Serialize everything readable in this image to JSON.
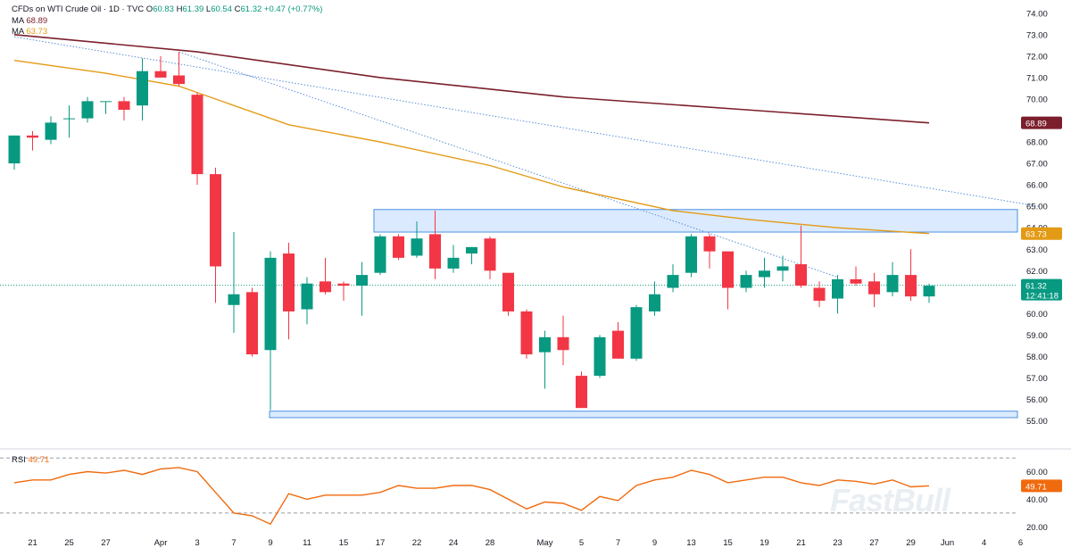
{
  "header": {
    "symbol": "CFDs on WTI Crude Oil · 1D · TVC",
    "o_label": "O",
    "o": "60.83",
    "h_label": "H",
    "h": "61.39",
    "l_label": "L",
    "l": "60.54",
    "c_label": "C",
    "c": "61.32",
    "change": "+0.47 (+0.77%)",
    "ma1_label": "MA",
    "ma1_value": "68.89",
    "ma2_label": "MA",
    "ma2_value": "63.73"
  },
  "rsi_legend": {
    "label": "RSI",
    "value": "49.71"
  },
  "watermark": "FastBull",
  "colors": {
    "up": "#089981",
    "down": "#f23645",
    "ma_long": "#7b1f2c",
    "ma_short": "#e39a14",
    "rsi": "#f06a0e",
    "zone_fill": "#dbeafe",
    "zone_border": "#4a90e2",
    "trendline": "#5b8ed6"
  },
  "chart_data": [
    {
      "type": "candlestick",
      "title": "CFDs on WTI Crude Oil · 1D · TVC",
      "ylim": [
        54.4,
        74.2
      ],
      "y_ticks": [
        55,
        56,
        57,
        58,
        59,
        60,
        61,
        62,
        63,
        64,
        65,
        66,
        67,
        68,
        69,
        70,
        71,
        72,
        73,
        74
      ],
      "y_tick_labels": [
        "55.00",
        "56.00",
        "57.00",
        "58.00",
        "59.00",
        "60.00",
        "61.00",
        "62.00",
        "63.00",
        "64.00",
        "65.00",
        "66.00",
        "67.00",
        "68.00",
        "69.00",
        "70.00",
        "71.00",
        "72.00",
        "73.00",
        "74.00"
      ],
      "x_tick_labels": [
        "21",
        "25",
        "27",
        "Apr",
        "3",
        "7",
        "9",
        "11",
        "15",
        "17",
        "22",
        "24",
        "28",
        "May",
        "5",
        "7",
        "9",
        "13",
        "15",
        "19",
        "21",
        "23",
        "27",
        "29",
        "Jun",
        "4",
        "6"
      ],
      "x_tick_index": [
        1,
        3,
        5,
        8,
        10,
        12,
        14,
        16,
        18,
        20,
        22,
        24,
        26,
        29,
        31,
        33,
        35,
        37,
        39,
        41,
        43,
        45,
        47,
        49,
        51,
        53,
        55
      ],
      "candles": [
        {
          "i": 0,
          "o": 67.0,
          "h": 68.3,
          "l": 66.7,
          "c": 68.3
        },
        {
          "i": 1,
          "o": 68.3,
          "h": 68.5,
          "l": 67.6,
          "c": 68.2
        },
        {
          "i": 2,
          "o": 68.1,
          "h": 69.2,
          "l": 67.9,
          "c": 68.9
        },
        {
          "i": 3,
          "o": 69.1,
          "h": 69.7,
          "l": 68.2,
          "c": 69.1
        },
        {
          "i": 4,
          "o": 69.1,
          "h": 70.1,
          "l": 68.9,
          "c": 69.9
        },
        {
          "i": 5,
          "o": 69.9,
          "h": 69.9,
          "l": 69.3,
          "c": 69.9
        },
        {
          "i": 6,
          "o": 69.9,
          "h": 70.1,
          "l": 69.0,
          "c": 69.5
        },
        {
          "i": 7,
          "o": 69.7,
          "h": 71.9,
          "l": 69.0,
          "c": 71.3
        },
        {
          "i": 8,
          "o": 71.3,
          "h": 72.0,
          "l": 71.0,
          "c": 71.0
        },
        {
          "i": 9,
          "o": 71.1,
          "h": 72.2,
          "l": 70.6,
          "c": 70.7
        },
        {
          "i": 10,
          "o": 70.2,
          "h": 70.3,
          "l": 66.0,
          "c": 66.5
        },
        {
          "i": 11,
          "o": 66.5,
          "h": 66.8,
          "l": 60.5,
          "c": 62.2
        },
        {
          "i": 12,
          "o": 60.4,
          "h": 63.8,
          "l": 59.1,
          "c": 60.9
        },
        {
          "i": 13,
          "o": 61.0,
          "h": 61.2,
          "l": 58.0,
          "c": 58.1
        },
        {
          "i": 14,
          "o": 58.3,
          "h": 62.9,
          "l": 55.5,
          "c": 62.6
        },
        {
          "i": 15,
          "o": 62.8,
          "h": 63.3,
          "l": 58.8,
          "c": 60.1
        },
        {
          "i": 16,
          "o": 60.2,
          "h": 61.7,
          "l": 59.5,
          "c": 61.4
        },
        {
          "i": 17,
          "o": 61.5,
          "h": 62.6,
          "l": 60.9,
          "c": 61.0
        },
        {
          "i": 18,
          "o": 61.4,
          "h": 61.5,
          "l": 60.6,
          "c": 61.3
        },
        {
          "i": 19,
          "o": 61.3,
          "h": 62.4,
          "l": 59.9,
          "c": 61.8
        },
        {
          "i": 20,
          "o": 61.9,
          "h": 63.7,
          "l": 61.8,
          "c": 63.6
        },
        {
          "i": 21,
          "o": 63.6,
          "h": 63.7,
          "l": 62.5,
          "c": 62.6
        },
        {
          "i": 22,
          "o": 62.7,
          "h": 64.3,
          "l": 62.6,
          "c": 63.5
        },
        {
          "i": 23,
          "o": 63.7,
          "h": 64.8,
          "l": 61.6,
          "c": 62.1
        },
        {
          "i": 24,
          "o": 62.1,
          "h": 63.2,
          "l": 61.9,
          "c": 62.6
        },
        {
          "i": 25,
          "o": 62.8,
          "h": 63.1,
          "l": 62.3,
          "c": 63.1
        },
        {
          "i": 26,
          "o": 63.5,
          "h": 63.6,
          "l": 61.6,
          "c": 62.0
        },
        {
          "i": 27,
          "o": 61.9,
          "h": 61.9,
          "l": 59.9,
          "c": 60.1
        },
        {
          "i": 28,
          "o": 60.1,
          "h": 60.2,
          "l": 57.9,
          "c": 58.1
        },
        {
          "i": 29,
          "o": 58.2,
          "h": 59.2,
          "l": 56.5,
          "c": 58.9
        },
        {
          "i": 30,
          "o": 58.9,
          "h": 59.9,
          "l": 57.6,
          "c": 58.3
        },
        {
          "i": 31,
          "o": 57.1,
          "h": 57.3,
          "l": 55.6,
          "c": 55.6
        },
        {
          "i": 32,
          "o": 57.1,
          "h": 59.0,
          "l": 57.0,
          "c": 58.9
        },
        {
          "i": 33,
          "o": 59.2,
          "h": 59.6,
          "l": 57.9,
          "c": 57.9
        },
        {
          "i": 34,
          "o": 57.9,
          "h": 60.4,
          "l": 57.8,
          "c": 60.3
        },
        {
          "i": 35,
          "o": 60.1,
          "h": 61.5,
          "l": 59.9,
          "c": 60.9
        },
        {
          "i": 36,
          "o": 61.2,
          "h": 62.3,
          "l": 61.0,
          "c": 61.8
        },
        {
          "i": 37,
          "o": 61.9,
          "h": 63.7,
          "l": 61.7,
          "c": 63.6
        },
        {
          "i": 38,
          "o": 63.6,
          "h": 63.7,
          "l": 62.1,
          "c": 62.9
        },
        {
          "i": 39,
          "o": 62.9,
          "h": 62.9,
          "l": 60.2,
          "c": 61.2
        },
        {
          "i": 40,
          "o": 61.2,
          "h": 62.0,
          "l": 61.0,
          "c": 61.8
        },
        {
          "i": 41,
          "o": 61.7,
          "h": 62.6,
          "l": 61.2,
          "c": 62.0
        },
        {
          "i": 42,
          "o": 62.0,
          "h": 62.7,
          "l": 61.5,
          "c": 62.2
        },
        {
          "i": 43,
          "o": 62.3,
          "h": 64.1,
          "l": 61.2,
          "c": 61.3
        },
        {
          "i": 44,
          "o": 61.2,
          "h": 61.5,
          "l": 60.3,
          "c": 60.6
        },
        {
          "i": 45,
          "o": 60.7,
          "h": 61.8,
          "l": 60.0,
          "c": 61.6
        },
        {
          "i": 46,
          "o": 61.6,
          "h": 62.2,
          "l": 61.3,
          "c": 61.4
        },
        {
          "i": 47,
          "o": 61.5,
          "h": 61.9,
          "l": 60.3,
          "c": 60.9
        },
        {
          "i": 48,
          "o": 61.0,
          "h": 62.4,
          "l": 60.8,
          "c": 61.8
        },
        {
          "i": 49,
          "o": 61.8,
          "h": 63.0,
          "l": 60.6,
          "c": 60.8
        },
        {
          "i": 50,
          "o": 60.8,
          "h": 61.4,
          "l": 60.5,
          "c": 61.3
        }
      ],
      "ma_long": {
        "name": "MA",
        "last": 68.89,
        "points": [
          [
            0,
            73.0
          ],
          [
            10,
            72.2
          ],
          [
            20,
            71.0
          ],
          [
            30,
            70.1
          ],
          [
            40,
            69.5
          ],
          [
            50,
            68.89
          ]
        ]
      },
      "ma_short": {
        "name": "MA",
        "last": 63.73,
        "points": [
          [
            0,
            71.8
          ],
          [
            5,
            71.2
          ],
          [
            9,
            70.6
          ],
          [
            15,
            68.8
          ],
          [
            20,
            68.0
          ],
          [
            26,
            66.9
          ],
          [
            30,
            65.9
          ],
          [
            36,
            64.8
          ],
          [
            40,
            64.4
          ],
          [
            45,
            64.0
          ],
          [
            50,
            63.73
          ]
        ]
      },
      "resistance_zone": {
        "x_from": 20,
        "y_low": 63.8,
        "y_high": 64.85
      },
      "support_zone": {
        "x_from": 14,
        "y_low": 55.15,
        "y_high": 55.45
      },
      "trendlines": [
        {
          "from": [
            0,
            72.9
          ],
          "to": [
            56,
            65.0
          ]
        },
        {
          "from": [
            9,
            72.2
          ],
          "to": [
            45,
            61.7
          ]
        }
      ],
      "last_price": {
        "value": "61.32",
        "countdown": "12:41:18"
      },
      "price_tags": [
        {
          "value": "68.89",
          "series": "ma_long"
        },
        {
          "value": "63.73",
          "series": "ma_short"
        }
      ]
    },
    {
      "type": "line",
      "title": "RSI",
      "ylim": [
        15,
        72
      ],
      "y_ticks": [
        20,
        40,
        60
      ],
      "y_tick_labels": [
        "20.00",
        "40.00",
        "60.00"
      ],
      "bands": [
        30,
        70
      ],
      "series": [
        {
          "name": "RSI",
          "values": [
            52,
            54,
            54,
            58,
            60,
            59,
            61,
            58,
            62,
            63,
            60,
            45,
            30,
            28,
            22,
            44,
            40,
            43,
            43,
            43,
            45,
            50,
            48,
            48,
            50,
            50,
            47,
            40,
            33,
            38,
            37,
            32,
            42,
            39,
            50,
            54,
            56,
            61,
            58,
            52,
            54,
            56,
            56,
            52,
            50,
            54,
            53,
            51,
            54,
            49,
            49.71
          ]
        }
      ],
      "last": "49.71"
    }
  ]
}
